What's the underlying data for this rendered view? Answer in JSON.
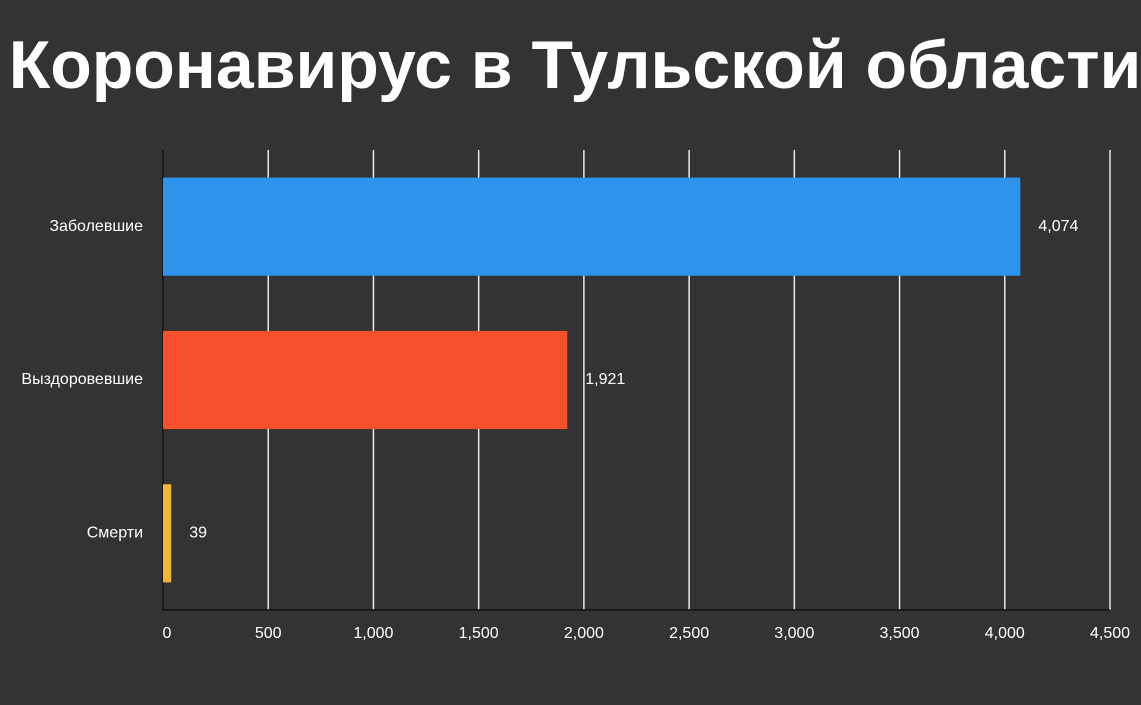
{
  "chart_data": {
    "type": "bar",
    "orientation": "horizontal",
    "title": "Коронавирус в Тульской области",
    "categories": [
      "Заболевшие",
      "Выздоровевшие",
      "Смерти"
    ],
    "values": [
      4074,
      1921,
      39
    ],
    "value_labels": [
      "4,074",
      "1,921",
      "39"
    ],
    "colors": [
      "#2d93eb",
      "#f54f2b",
      "#f3b533"
    ],
    "xlim": [
      0,
      4500
    ],
    "xticks": [
      0,
      500,
      {
        "value": 1000,
        "label": "1,000"
      },
      {
        "value": 1500,
        "label": "1,500"
      },
      {
        "value": 2000,
        "label": "2,000"
      },
      {
        "value": 2500,
        "label": "2,500"
      },
      {
        "value": 3000,
        "label": "3,000"
      },
      {
        "value": 3500,
        "label": "3,500"
      },
      {
        "value": 4000,
        "label": "4,000"
      },
      {
        "value": 4500,
        "label": "4,500"
      }
    ],
    "grid": true
  }
}
